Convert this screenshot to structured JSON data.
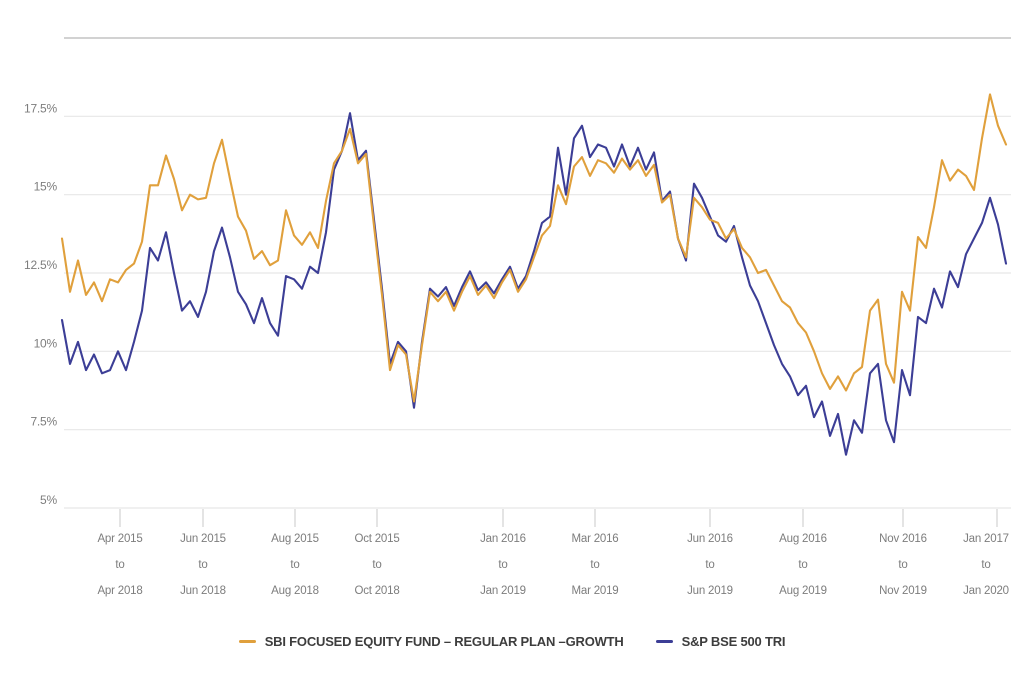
{
  "chart_data": {
    "type": "line",
    "title": "",
    "xlabel": "",
    "ylabel": "",
    "legend_position": "bottom",
    "y_axis": {
      "unit": "%",
      "min": 5,
      "max": 20,
      "tick_labels": [
        "17.5%",
        "15%",
        "12.5%",
        "10%",
        "7.5%",
        "5%"
      ],
      "tick_values": [
        17.5,
        15,
        12.5,
        10,
        7.5,
        5
      ],
      "gridline_values": [
        20,
        17.5,
        15,
        12.5,
        10,
        7.5,
        5
      ],
      "grid": true
    },
    "x_axis": {
      "tick_labels": [
        [
          "Apr 2015",
          "to",
          "Apr 2018"
        ],
        [
          "Jun 2015",
          "to",
          "Jun 2018"
        ],
        [
          "Aug 2015",
          "to",
          "Aug 2018"
        ],
        [
          "Oct 2015",
          "to",
          "Oct 2018"
        ],
        [
          "Jan 2016",
          "to",
          "Jan 2019"
        ],
        [
          "Mar 2016",
          "to",
          "Mar 2019"
        ],
        [
          "Jun 2016",
          "to",
          "Jun 2019"
        ],
        [
          "Aug 2016",
          "to",
          "Aug 2019"
        ],
        [
          "Nov 2016",
          "to",
          "Nov 2019"
        ],
        [
          "Jan 2017",
          "to",
          "Jan 2020"
        ]
      ]
    },
    "series": [
      {
        "name": "SBI FOCUSED EQUITY FUND – REGULAR PLAN –GROWTH",
        "key": "sbi-focused-equity-fund",
        "color": "#E0A03C",
        "values": [
          13.6,
          11.9,
          12.9,
          11.8,
          12.2,
          11.6,
          12.3,
          12.2,
          12.6,
          12.8,
          13.5,
          15.3,
          15.3,
          16.25,
          15.5,
          14.5,
          15.0,
          14.85,
          14.9,
          16.0,
          16.75,
          15.5,
          14.3,
          13.85,
          12.95,
          13.2,
          12.75,
          12.9,
          14.5,
          13.7,
          13.4,
          13.8,
          13.3,
          14.8,
          16.0,
          16.4,
          17.1,
          16.0,
          16.3,
          14.0,
          11.8,
          9.4,
          10.2,
          9.9,
          8.4,
          10.2,
          11.9,
          11.6,
          11.9,
          11.3,
          11.9,
          12.4,
          11.8,
          12.1,
          11.7,
          12.2,
          12.6,
          11.9,
          12.3,
          13.0,
          13.7,
          14.0,
          15.3,
          14.7,
          15.9,
          16.2,
          15.6,
          16.1,
          16.0,
          15.7,
          16.15,
          15.8,
          16.1,
          15.6,
          15.95,
          14.75,
          15.0,
          13.6,
          13.0,
          14.9,
          14.6,
          14.2,
          14.1,
          13.6,
          13.9,
          13.3,
          13.0,
          12.5,
          12.6,
          12.1,
          11.6,
          11.4,
          10.9,
          10.6,
          10.0,
          9.3,
          8.8,
          9.2,
          8.75,
          9.3,
          9.5,
          11.3,
          11.65,
          9.6,
          9.0,
          11.9,
          11.3,
          13.65,
          13.3,
          14.6,
          16.1,
          15.45,
          15.8,
          15.6,
          15.15,
          16.8,
          18.2,
          17.2,
          16.6
        ]
      },
      {
        "name": "S&P BSE 500 TRI",
        "key": "sp-bse-500-tri",
        "color": "#3C3E96",
        "values": [
          11.0,
          9.6,
          10.3,
          9.4,
          9.9,
          9.3,
          9.4,
          10.0,
          9.4,
          10.3,
          11.3,
          13.3,
          12.9,
          13.8,
          12.5,
          11.3,
          11.6,
          11.1,
          11.9,
          13.2,
          13.95,
          13.0,
          11.9,
          11.5,
          10.9,
          11.7,
          10.9,
          10.5,
          12.4,
          12.3,
          12.0,
          12.7,
          12.5,
          13.8,
          15.8,
          16.4,
          17.6,
          16.1,
          16.4,
          14.2,
          12.0,
          9.6,
          10.3,
          10.0,
          8.2,
          10.3,
          12.0,
          11.75,
          12.05,
          11.45,
          12.05,
          12.55,
          11.95,
          12.2,
          11.85,
          12.3,
          12.7,
          12.0,
          12.4,
          13.2,
          14.1,
          14.3,
          16.5,
          15.0,
          16.8,
          17.2,
          16.2,
          16.6,
          16.5,
          15.9,
          16.6,
          15.9,
          16.5,
          15.8,
          16.35,
          14.8,
          15.1,
          13.6,
          12.9,
          15.35,
          14.9,
          14.3,
          13.7,
          13.5,
          14.0,
          13.0,
          12.1,
          11.6,
          10.9,
          10.2,
          9.6,
          9.2,
          8.6,
          8.9,
          7.9,
          8.4,
          7.3,
          8.0,
          6.7,
          7.8,
          7.4,
          9.3,
          9.6,
          7.8,
          7.1,
          9.4,
          8.6,
          11.1,
          10.9,
          12.0,
          11.4,
          12.55,
          12.05,
          13.1,
          13.6,
          14.1,
          14.9,
          14.05,
          12.8
        ]
      }
    ]
  },
  "legend": {
    "items": [
      {
        "label": "SBI FOCUSED EQUITY FUND – REGULAR PLAN –GROWTH",
        "color": "#E0A03C"
      },
      {
        "label": "S&P BSE 500 TRI",
        "color": "#3C3E96"
      }
    ]
  },
  "colors": {
    "fund_line": "#E0A03C",
    "benchmark_line": "#3C3E96",
    "axis_text": "#7d7d7d",
    "gridline": "#e7e7e7",
    "gridline_top": "#c3c3c3",
    "legend_text": "#3d3d3d"
  }
}
